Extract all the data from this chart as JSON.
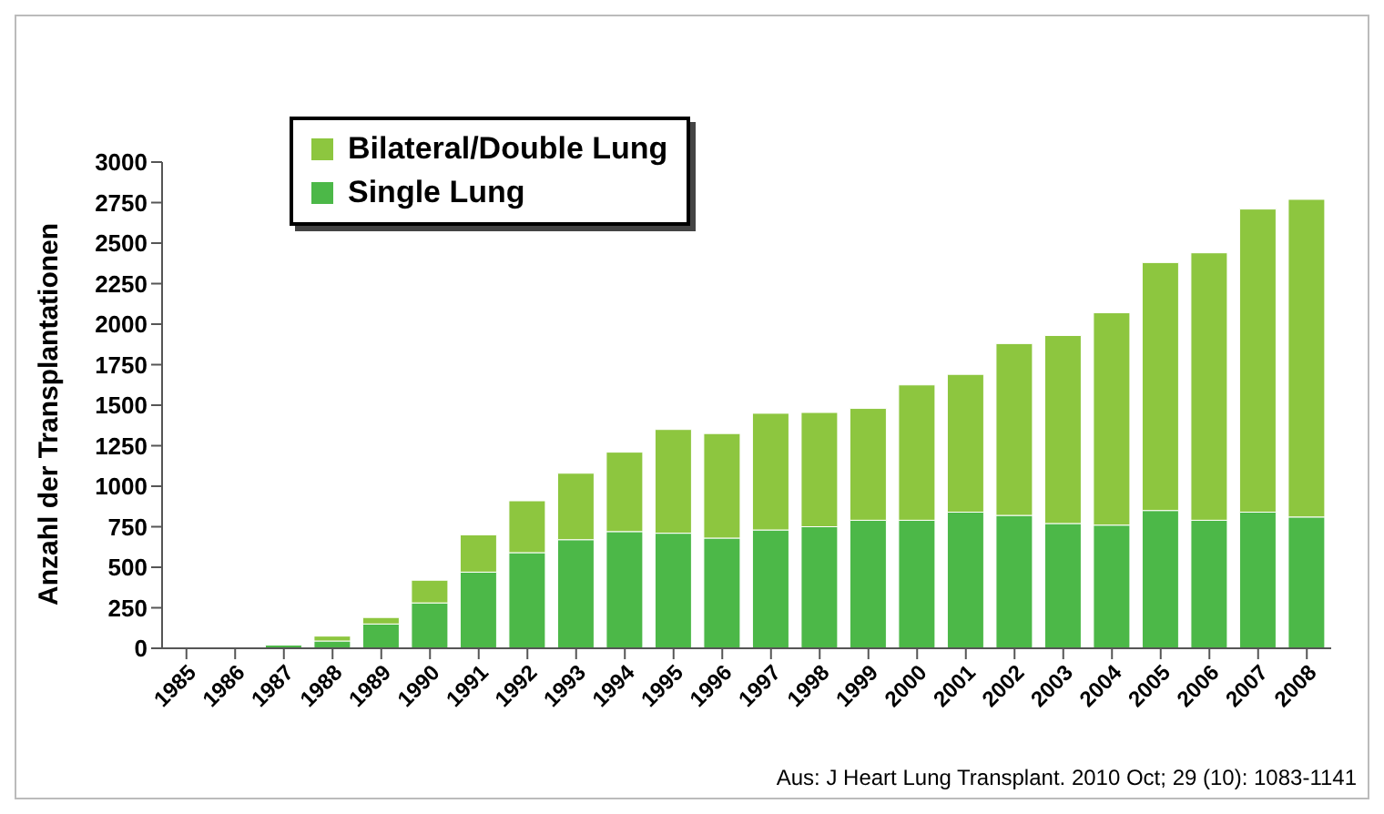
{
  "chart_data": {
    "type": "bar",
    "stacked": true,
    "ylabel": "Anzahl der Transplantationen",
    "categories": [
      "1985",
      "1986",
      "1987",
      "1988",
      "1989",
      "1990",
      "1991",
      "1992",
      "1993",
      "1994",
      "1995",
      "1996",
      "1997",
      "1998",
      "1999",
      "2000",
      "2001",
      "2002",
      "2003",
      "2004",
      "2005",
      "2006",
      "2007",
      "2008"
    ],
    "series": [
      {
        "name": "Single Lung",
        "color": "#4cb848",
        "values": [
          0,
          0,
          20,
          45,
          150,
          280,
          470,
          590,
          670,
          720,
          710,
          680,
          730,
          750,
          790,
          790,
          840,
          820,
          770,
          760,
          850,
          790,
          840,
          810
        ]
      },
      {
        "name": "Bilateral/Double Lung",
        "color": "#8dc63f",
        "values": [
          0,
          0,
          null,
          30,
          40,
          140,
          230,
          320,
          410,
          490,
          640,
          645,
          720,
          705,
          690,
          835,
          850,
          1060,
          1160,
          1310,
          1530,
          1650,
          1870,
          1960
        ]
      }
    ],
    "ylim": [
      0,
      3000
    ],
    "yticks": [
      0,
      250,
      500,
      750,
      1000,
      1250,
      1500,
      1750,
      2000,
      2250,
      2500,
      2750,
      3000
    ],
    "grid": false,
    "legend": "top left",
    "annotations": [
      "Aus:  J Heart Lung Transplant. 2010 Oct; 29 (10): 1083-1141"
    ]
  }
}
